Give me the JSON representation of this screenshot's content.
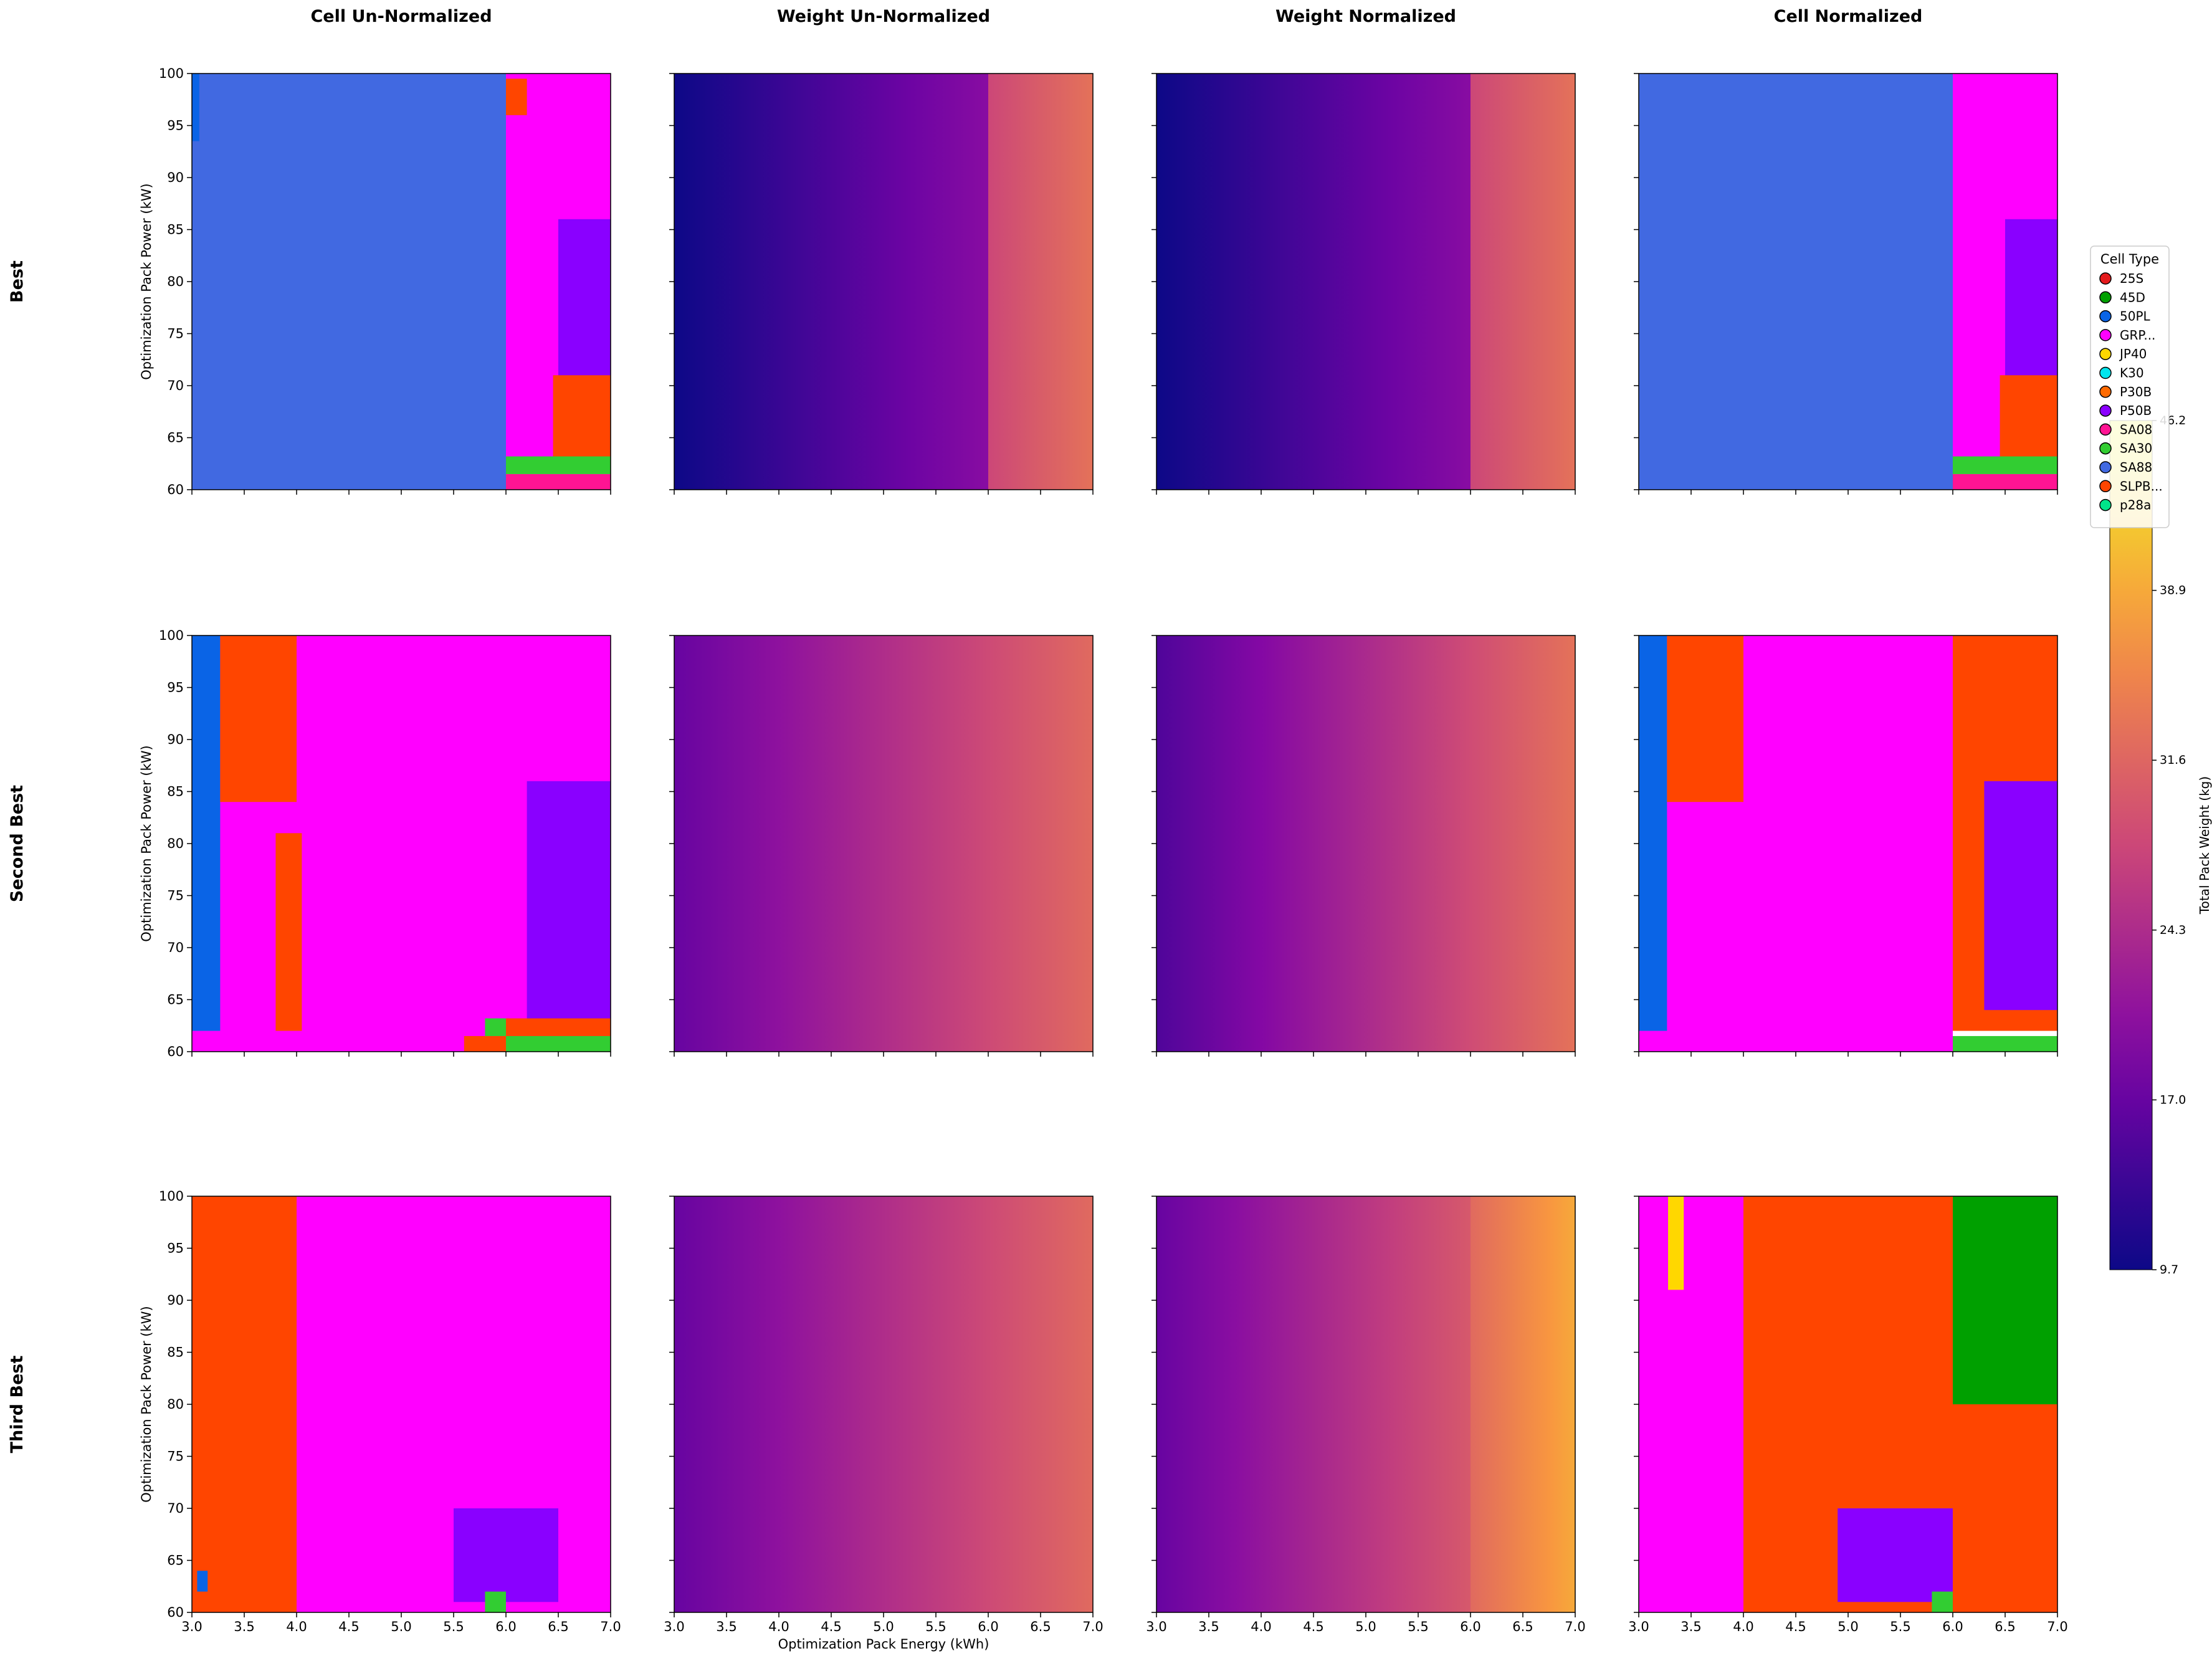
{
  "figure": {
    "column_titles": [
      "Cell Un-Normalized",
      "Weight Un-Normalized",
      "Weight Normalized",
      "Cell Normalized"
    ],
    "row_titles": [
      "Best",
      "Second Best",
      "Third Best"
    ],
    "ylabel": "Optimization Pack Power (kW)",
    "xlabel": "Optimization Pack Energy (kWh)",
    "legend_title": "Cell Type",
    "legend_items": [
      {
        "label": "25S",
        "color": "#e41a1c"
      },
      {
        "label": "45D",
        "color": "#00a000"
      },
      {
        "label": "50PL",
        "color": "#0a64e6"
      },
      {
        "label": "GRP...",
        "color": "#ff00ff"
      },
      {
        "label": "JP40",
        "color": "#ffd700"
      },
      {
        "label": "K30",
        "color": "#00e5ee"
      },
      {
        "label": "P30B",
        "color": "#ff6a00"
      },
      {
        "label": "P50B",
        "color": "#8a00ff"
      },
      {
        "label": "SA08",
        "color": "#ff1493"
      },
      {
        "label": "SA30",
        "color": "#32cd32"
      },
      {
        "label": "SA88",
        "color": "#4169e1"
      },
      {
        "label": "SLPB...",
        "color": "#ff4500"
      },
      {
        "label": "p28a",
        "color": "#00e58a"
      }
    ],
    "colorbar_label": "Total Pack Weight (kg)",
    "colorbar_ticks": [
      "9.7",
      "17.0",
      "24.3",
      "31.6",
      "38.9",
      "46.2"
    ]
  },
  "chart_data": {
    "type": "heatmap",
    "grid": "4 columns x 3 rows of panels",
    "x_range": [
      3.0,
      7.0
    ],
    "y_range": [
      60,
      100
    ],
    "x_ticks": [
      "3.0",
      "3.5",
      "4.0",
      "4.5",
      "5.0",
      "5.5",
      "6.0",
      "6.5",
      "7.0"
    ],
    "y_ticks": [
      "60",
      "65",
      "70",
      "75",
      "80",
      "85",
      "90",
      "95",
      "100"
    ],
    "colorbar_range": [
      9.7,
      46.2
    ],
    "panels": [
      {
        "row": "Best",
        "column": "Cell Un-Normalized",
        "kind": "categorical",
        "regions": [
          {
            "cell": "SA88",
            "x": [
              3.0,
              6.0
            ],
            "y": [
              60,
              100
            ]
          },
          {
            "cell": "50PL",
            "x": [
              3.0,
              3.07
            ],
            "y": [
              93.5,
              100
            ]
          },
          {
            "cell": "GRP...",
            "x": [
              6.0,
              7.0
            ],
            "y": [
              63,
              100
            ]
          },
          {
            "cell": "SLPB...",
            "x": [
              6.0,
              6.2
            ],
            "y": [
              96,
              99.5
            ]
          },
          {
            "cell": "P50B",
            "x": [
              6.5,
              7.0
            ],
            "y": [
              64,
              86
            ]
          },
          {
            "cell": "SLPB...",
            "x": [
              6.45,
              7.0
            ],
            "y": [
              63,
              71
            ]
          },
          {
            "cell": "SA30",
            "x": [
              6.0,
              7.0
            ],
            "y": [
              61.5,
              63.2
            ]
          },
          {
            "cell": "SA08",
            "x": [
              6.0,
              7.0
            ],
            "y": [
              60,
              61.5
            ]
          }
        ]
      },
      {
        "row": "Best",
        "column": "Weight Un-Normalized",
        "kind": "weight",
        "weight_range_kg": [
          9.7,
          31.6
        ],
        "regions": [
          {
            "x": [
              3.0,
              6.0
            ],
            "y": [
              60,
              100
            ],
            "weight_kg": [
              9.7,
              20.0
            ]
          },
          {
            "x": [
              6.0,
              7.0
            ],
            "y": [
              60,
              100
            ],
            "weight_kg": [
              28.0,
              33.0
            ]
          }
        ]
      },
      {
        "row": "Best",
        "column": "Weight Normalized",
        "kind": "weight",
        "weight_range_kg": [
          9.7,
          31.6
        ],
        "regions": [
          {
            "x": [
              3.0,
              6.0
            ],
            "y": [
              60,
              100
            ],
            "weight_kg": [
              9.7,
              20.0
            ]
          },
          {
            "x": [
              6.0,
              7.0
            ],
            "y": [
              60,
              100
            ],
            "weight_kg": [
              28.0,
              33.0
            ]
          }
        ]
      },
      {
        "row": "Best",
        "column": "Cell Normalized",
        "kind": "categorical",
        "regions": [
          {
            "cell": "SA88",
            "x": [
              3.0,
              6.0
            ],
            "y": [
              60,
              100
            ]
          },
          {
            "cell": "GRP...",
            "x": [
              6.0,
              7.0
            ],
            "y": [
              63,
              100
            ]
          },
          {
            "cell": "P50B",
            "x": [
              6.5,
              7.0
            ],
            "y": [
              64,
              86
            ]
          },
          {
            "cell": "SLPB...",
            "x": [
              6.45,
              7.0
            ],
            "y": [
              63,
              71
            ]
          },
          {
            "cell": "SA30",
            "x": [
              6.0,
              7.0
            ],
            "y": [
              61.5,
              63.2
            ]
          },
          {
            "cell": "SA08",
            "x": [
              6.0,
              7.0
            ],
            "y": [
              60,
              61.5
            ]
          }
        ]
      },
      {
        "row": "Second Best",
        "column": "Cell Un-Normalized",
        "kind": "categorical",
        "regions": [
          {
            "cell": "GRP...",
            "x": [
              3.0,
              7.0
            ],
            "y": [
              60,
              100
            ]
          },
          {
            "cell": "50PL",
            "x": [
              3.0,
              3.27
            ],
            "y": [
              62,
              100
            ]
          },
          {
            "cell": "SLPB...",
            "x": [
              3.27,
              4.0
            ],
            "y": [
              84,
              100
            ]
          },
          {
            "cell": "SLPB...",
            "x": [
              3.8,
              4.05
            ],
            "y": [
              62,
              81
            ]
          },
          {
            "cell": "P50B",
            "x": [
              6.2,
              7.0
            ],
            "y": [
              62,
              86
            ]
          },
          {
            "cell": "SLPB...",
            "x": [
              5.6,
              6.0
            ],
            "y": [
              60,
              61.5
            ]
          },
          {
            "cell": "SA30",
            "x": [
              5.8,
              6.0
            ],
            "y": [
              61.5,
              63.2
            ]
          },
          {
            "cell": "SLPB...",
            "x": [
              6.0,
              7.0
            ],
            "y": [
              61.5,
              63.2
            ]
          },
          {
            "cell": "SA30",
            "x": [
              6.0,
              7.0
            ],
            "y": [
              60,
              61.5
            ]
          }
        ]
      },
      {
        "row": "Second Best",
        "column": "Weight Un-Normalized",
        "kind": "weight",
        "weight_range_kg": [
          17.0,
          31.6
        ],
        "regions": [
          {
            "x": [
              3.0,
              7.0
            ],
            "y": [
              60,
              100
            ],
            "weight_kg": [
              17.0,
              32.0
            ]
          }
        ]
      },
      {
        "row": "Second Best",
        "column": "Weight Normalized",
        "kind": "weight",
        "weight_range_kg": [
          15.0,
          33.0
        ],
        "regions": [
          {
            "x": [
              3.0,
              7.0
            ],
            "y": [
              60,
              100
            ],
            "weight_kg": [
              15.0,
              33.0
            ]
          }
        ]
      },
      {
        "row": "Second Best",
        "column": "Cell Normalized",
        "kind": "categorical",
        "regions": [
          {
            "cell": "GRP...",
            "x": [
              3.0,
              6.0
            ],
            "y": [
              60,
              100
            ]
          },
          {
            "cell": "50PL",
            "x": [
              3.0,
              3.27
            ],
            "y": [
              62,
              100
            ]
          },
          {
            "cell": "SLPB...",
            "x": [
              3.27,
              4.0
            ],
            "y": [
              84,
              100
            ]
          },
          {
            "cell": "SLPB...",
            "x": [
              6.0,
              7.0
            ],
            "y": [
              62,
              100
            ]
          },
          {
            "cell": "P50B",
            "x": [
              6.3,
              7.0
            ],
            "y": [
              64,
              86
            ]
          },
          {
            "cell": "SA30",
            "x": [
              6.0,
              7.0
            ],
            "y": [
              60,
              61.5
            ]
          }
        ]
      },
      {
        "row": "Third Best",
        "column": "Cell Un-Normalized",
        "kind": "categorical",
        "regions": [
          {
            "cell": "SLPB...",
            "x": [
              3.0,
              7.0
            ],
            "y": [
              60,
              100
            ]
          },
          {
            "cell": "GRP...",
            "x": [
              4.0,
              7.0
            ],
            "y": [
              60,
              100
            ]
          },
          {
            "cell": "P50B",
            "x": [
              5.5,
              6.5
            ],
            "y": [
              61,
              70
            ]
          },
          {
            "cell": "SA30",
            "x": [
              5.8,
              6.0
            ],
            "y": [
              60,
              62
            ]
          },
          {
            "cell": "50PL",
            "x": [
              3.05,
              3.15
            ],
            "y": [
              62,
              64
            ]
          }
        ]
      },
      {
        "row": "Third Best",
        "column": "Weight Un-Normalized",
        "kind": "weight",
        "weight_range_kg": [
          17.0,
          32.0
        ],
        "regions": [
          {
            "x": [
              3.0,
              7.0
            ],
            "y": [
              60,
              100
            ],
            "weight_kg": [
              17.0,
              32.0
            ]
          }
        ]
      },
      {
        "row": "Third Best",
        "column": "Weight Normalized",
        "kind": "weight",
        "weight_range_kg": [
          17.0,
          38.9
        ],
        "regions": [
          {
            "x": [
              3.0,
              6.0
            ],
            "y": [
              60,
              100
            ],
            "weight_kg": [
              17.0,
              30.0
            ]
          },
          {
            "x": [
              6.0,
              7.0
            ],
            "y": [
              60,
              100
            ],
            "weight_kg": [
              32.0,
              38.9
            ]
          }
        ]
      },
      {
        "row": "Third Best",
        "column": "Cell Normalized",
        "kind": "categorical",
        "regions": [
          {
            "cell": "SLPB...",
            "x": [
              3.0,
              7.0
            ],
            "y": [
              60,
              100
            ]
          },
          {
            "cell": "GRP...",
            "x": [
              3.0,
              4.0
            ],
            "y": [
              60,
              100
            ]
          },
          {
            "cell": "JP40",
            "x": [
              3.28,
              3.43
            ],
            "y": [
              91,
              100
            ]
          },
          {
            "cell": "45D",
            "x": [
              6.0,
              7.0
            ],
            "y": [
              80,
              100
            ]
          },
          {
            "cell": "P50B",
            "x": [
              4.9,
              6.0
            ],
            "y": [
              61,
              70
            ]
          },
          {
            "cell": "SA30",
            "x": [
              5.8,
              6.0
            ],
            "y": [
              60,
              62
            ]
          }
        ]
      }
    ]
  }
}
